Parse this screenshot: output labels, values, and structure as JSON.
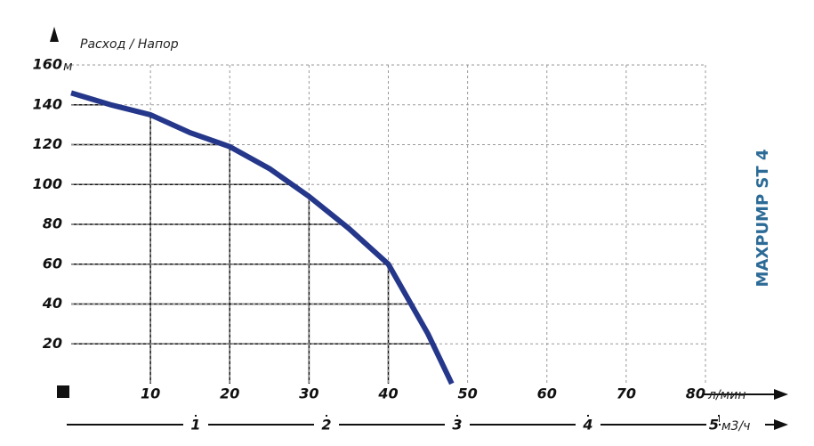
{
  "chart_data": {
    "type": "line",
    "y_title": "Расход / Напор",
    "y_unit": "м",
    "x_unit": "л/мин",
    "x2_unit": "м3/ч",
    "side_title": "MAXPUMP ST 4",
    "x": [
      0,
      5,
      10,
      15,
      20,
      25,
      30,
      35,
      40,
      45,
      48
    ],
    "values": [
      146,
      140,
      135,
      126,
      119,
      108,
      94,
      78,
      60,
      25,
      0
    ],
    "color": "#25378a",
    "xlim": [
      0,
      80
    ],
    "xticks": [
      10,
      20,
      30,
      40,
      50,
      60,
      70,
      80
    ],
    "ylim": [
      0,
      160
    ],
    "yticks": [
      20,
      40,
      60,
      80,
      100,
      120,
      140,
      160
    ],
    "x2lim": [
      0,
      5
    ],
    "x2ticks": [
      1,
      2,
      3,
      4,
      5
    ],
    "grid": true
  }
}
